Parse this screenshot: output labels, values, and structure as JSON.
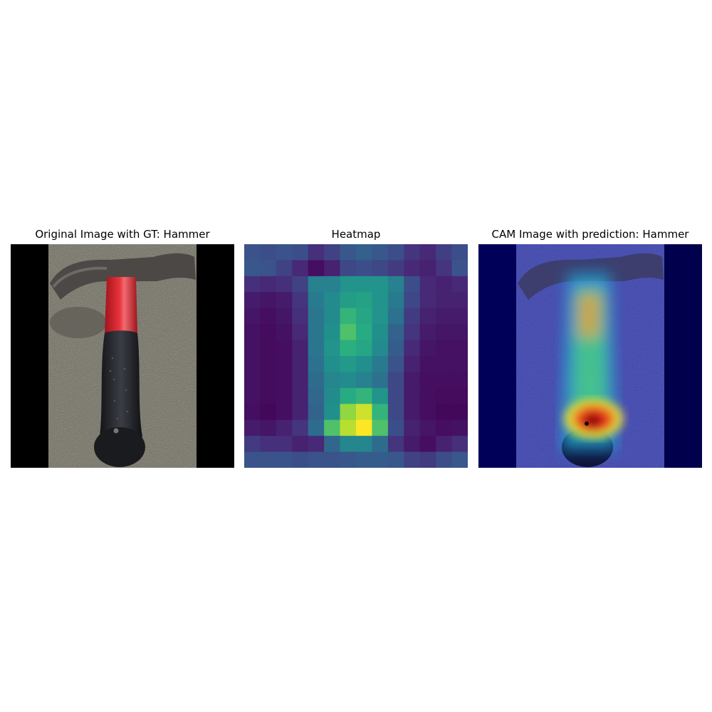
{
  "titles": {
    "original": "Original Image with GT: Hammer",
    "heatmap": "Heatmap",
    "cam": "CAM Image with prediction: Hammer"
  },
  "chart_data": {
    "type": "heatmap",
    "title": "Heatmap",
    "rows": 14,
    "cols": 14,
    "colormap": "viridis",
    "value_range": [
      0,
      1
    ],
    "values": [
      [
        0.26,
        0.24,
        0.26,
        0.24,
        0.14,
        0.2,
        0.28,
        0.31,
        0.28,
        0.24,
        0.16,
        0.12,
        0.19,
        0.24
      ],
      [
        0.28,
        0.26,
        0.2,
        0.12,
        0.04,
        0.1,
        0.22,
        0.24,
        0.22,
        0.18,
        0.12,
        0.1,
        0.16,
        0.26
      ],
      [
        0.14,
        0.12,
        0.14,
        0.2,
        0.44,
        0.44,
        0.52,
        0.52,
        0.52,
        0.44,
        0.24,
        0.12,
        0.1,
        0.12
      ],
      [
        0.08,
        0.06,
        0.08,
        0.16,
        0.42,
        0.48,
        0.56,
        0.58,
        0.52,
        0.42,
        0.22,
        0.12,
        0.1,
        0.1
      ],
      [
        0.06,
        0.04,
        0.06,
        0.14,
        0.4,
        0.48,
        0.66,
        0.6,
        0.52,
        0.38,
        0.18,
        0.1,
        0.08,
        0.08
      ],
      [
        0.05,
        0.03,
        0.05,
        0.12,
        0.4,
        0.5,
        0.72,
        0.62,
        0.5,
        0.32,
        0.16,
        0.08,
        0.06,
        0.06
      ],
      [
        0.05,
        0.03,
        0.04,
        0.1,
        0.4,
        0.52,
        0.64,
        0.6,
        0.48,
        0.3,
        0.12,
        0.06,
        0.05,
        0.05
      ],
      [
        0.05,
        0.03,
        0.04,
        0.1,
        0.38,
        0.5,
        0.54,
        0.5,
        0.42,
        0.26,
        0.1,
        0.05,
        0.05,
        0.05
      ],
      [
        0.05,
        0.03,
        0.04,
        0.1,
        0.36,
        0.46,
        0.48,
        0.44,
        0.38,
        0.22,
        0.08,
        0.04,
        0.04,
        0.04
      ],
      [
        0.05,
        0.03,
        0.04,
        0.1,
        0.34,
        0.48,
        0.62,
        0.66,
        0.52,
        0.22,
        0.08,
        0.04,
        0.03,
        0.03
      ],
      [
        0.04,
        0.02,
        0.04,
        0.1,
        0.32,
        0.5,
        0.84,
        0.93,
        0.66,
        0.22,
        0.08,
        0.04,
        0.02,
        0.02
      ],
      [
        0.08,
        0.06,
        0.1,
        0.16,
        0.36,
        0.72,
        0.9,
        1.0,
        0.72,
        0.24,
        0.1,
        0.06,
        0.04,
        0.05
      ],
      [
        0.18,
        0.14,
        0.14,
        0.1,
        0.12,
        0.34,
        0.46,
        0.46,
        0.36,
        0.16,
        0.08,
        0.04,
        0.1,
        0.14
      ],
      [
        0.26,
        0.26,
        0.26,
        0.24,
        0.26,
        0.26,
        0.28,
        0.3,
        0.3,
        0.28,
        0.2,
        0.18,
        0.24,
        0.28
      ]
    ]
  },
  "colors": {
    "letterbox": "#000000",
    "hammer_handle_red": "#d8262e",
    "hammer_grip_black": "#222428",
    "hammer_head_gray": "#4c4846",
    "ground_gray": "#7d7b6f",
    "cam_overlay_blue": "#1a1aa8"
  },
  "images": {
    "original_icon": "hammer-photo",
    "cam_icon": "hammer-cam-overlay"
  }
}
